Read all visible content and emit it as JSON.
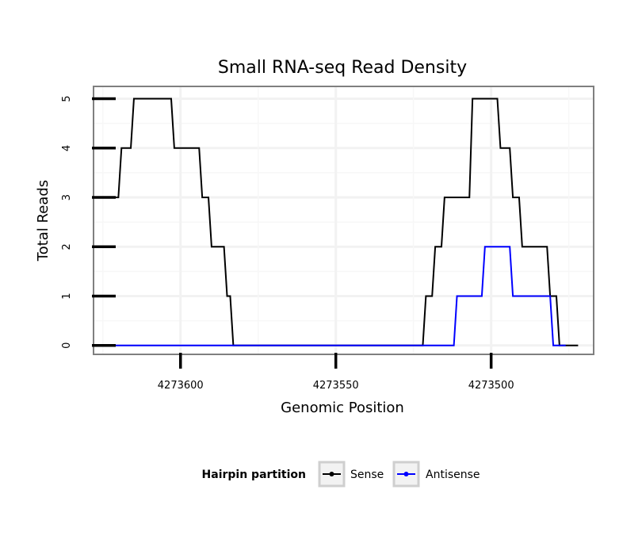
{
  "chart_data": {
    "type": "line",
    "title": "Small RNA-seq Read Density",
    "xlabel": "Genomic Position",
    "ylabel": "Total Reads",
    "xlim": [
      4273628,
      4273467
    ],
    "ylim": [
      -0.18,
      5.25
    ],
    "x_reversed": true,
    "x_ticks": [
      4273600,
      4273550,
      4273500
    ],
    "x_tick_labels": [
      "4273600",
      "4273550",
      "4273500"
    ],
    "y_ticks": [
      0,
      1,
      2,
      3,
      4,
      5
    ],
    "y_tick_labels": [
      "0",
      "1",
      "2",
      "3",
      "4",
      "5"
    ],
    "grid": true,
    "legend": {
      "title": "Hairpin partition",
      "position": "bottom",
      "entries": [
        "Sense",
        "Antisense"
      ]
    },
    "series": [
      {
        "name": "Sense",
        "color": "#000000",
        "points": [
          [
            4273628,
            3
          ],
          [
            4273620,
            3
          ],
          [
            4273619,
            4
          ],
          [
            4273616,
            4
          ],
          [
            4273615,
            5
          ],
          [
            4273603,
            5
          ],
          [
            4273602,
            4
          ],
          [
            4273594,
            4
          ],
          [
            4273593,
            3
          ],
          [
            4273591,
            3
          ],
          [
            4273590,
            2
          ],
          [
            4273586,
            2
          ],
          [
            4273585,
            1
          ],
          [
            4273584,
            1
          ],
          [
            4273583,
            0
          ],
          [
            4273522,
            0
          ],
          [
            4273521,
            1
          ],
          [
            4273519,
            1
          ],
          [
            4273518,
            2
          ],
          [
            4273516,
            2
          ],
          [
            4273515,
            3
          ],
          [
            4273507,
            3
          ],
          [
            4273506,
            5
          ],
          [
            4273498,
            5
          ],
          [
            4273497,
            4
          ],
          [
            4273494,
            4
          ],
          [
            4273493,
            3
          ],
          [
            4273491,
            3
          ],
          [
            4273490,
            2
          ],
          [
            4273482,
            2
          ],
          [
            4273481,
            1
          ],
          [
            4273479,
            1
          ],
          [
            4273478,
            0
          ],
          [
            4273472,
            0
          ]
        ]
      },
      {
        "name": "Antisense",
        "color": "#0000ff",
        "points": [
          [
            4273628,
            0
          ],
          [
            4273512,
            0
          ],
          [
            4273511,
            1
          ],
          [
            4273503,
            1
          ],
          [
            4273502,
            2
          ],
          [
            4273494,
            2
          ],
          [
            4273493,
            1
          ],
          [
            4273481,
            1
          ],
          [
            4273480,
            0
          ],
          [
            4273476,
            0
          ]
        ]
      }
    ]
  }
}
